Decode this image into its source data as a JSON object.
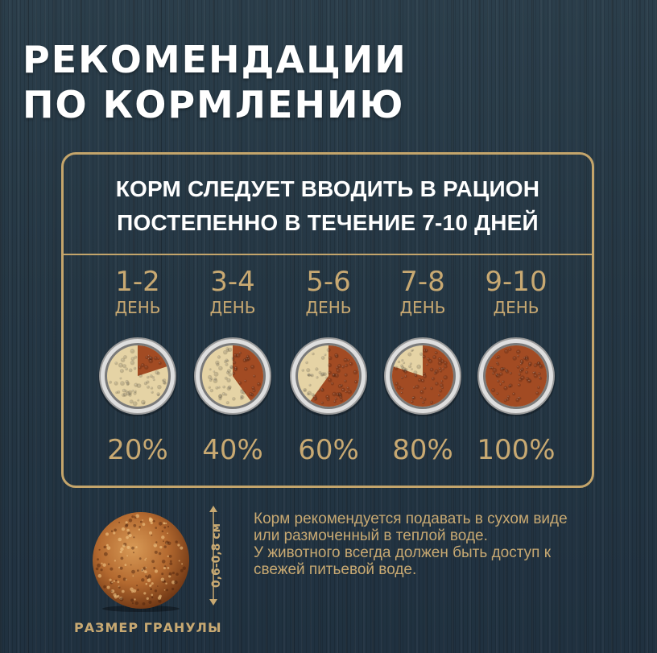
{
  "title": {
    "line1": "РЕКОМЕНДАЦИИ",
    "line2": "ПО КОРМЛЕНИЮ"
  },
  "panel": {
    "heading_line1": "КОРМ СЛЕДУЕТ ВВОДИТЬ В РАЦИОН",
    "heading_line2": "ПОСТЕПЕННО В ТЕЧЕНИЕ 7-10 ДНЕЙ",
    "stages": [
      {
        "days": "1-2",
        "day_label": "ДЕНЬ",
        "percent": "20%",
        "new_food_fraction": 0.2
      },
      {
        "days": "3-4",
        "day_label": "ДЕНЬ",
        "percent": "40%",
        "new_food_fraction": 0.4
      },
      {
        "days": "5-6",
        "day_label": "ДЕНЬ",
        "percent": "60%",
        "new_food_fraction": 0.6
      },
      {
        "days": "7-8",
        "day_label": "ДЕНЬ",
        "percent": "80%",
        "new_food_fraction": 0.8
      },
      {
        "days": "9-10",
        "day_label": "ДЕНЬ",
        "percent": "100%",
        "new_food_fraction": 1.0
      }
    ]
  },
  "granule": {
    "size": "0,6-0,8 см",
    "caption": "РАЗМЕР ГРАНУЛЫ"
  },
  "note": {
    "line1": "Корм рекомендуется подавать в сухом виде",
    "line2": "или размоченный в теплой воде.",
    "line3": "У животного всегда должен быть доступ к",
    "line4": "свежей питьевой воде."
  },
  "colors": {
    "gold": "#c8a972",
    "frame": "#c4a56b",
    "new_food": "#a24b23",
    "old_food": "#e5d3a5",
    "bowl_rim": "#dedede",
    "background": "#253744"
  },
  "icons": {
    "bowl": "food-bowl-icon",
    "granule": "kibble-granule-icon",
    "size_arrow": "double-arrow-icon"
  }
}
